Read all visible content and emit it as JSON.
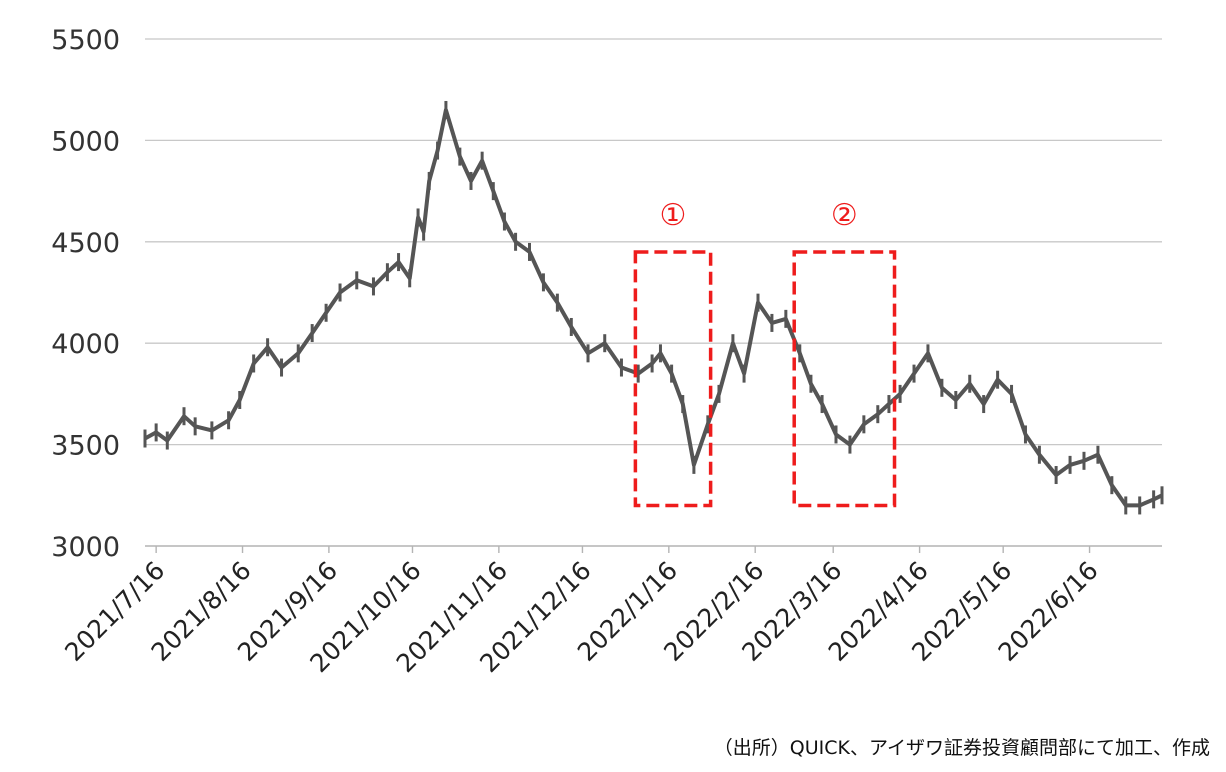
{
  "chart_data": {
    "type": "line",
    "title": "",
    "xlabel": "",
    "ylabel": "",
    "ylim": [
      3000,
      5500
    ],
    "xlim": [
      "2021-07-12",
      "2022-07-12"
    ],
    "y_ticks": [
      "3000",
      "3500",
      "4000",
      "4500",
      "5000",
      "5500"
    ],
    "x_ticks": [
      {
        "label": "2021/7/16",
        "date": "2021-07-16"
      },
      {
        "label": "2021/8/16",
        "date": "2021-08-16"
      },
      {
        "label": "2021/9/16",
        "date": "2021-09-16"
      },
      {
        "label": "2021/10/16",
        "date": "2021-10-16"
      },
      {
        "label": "2021/11/16",
        "date": "2021-11-16"
      },
      {
        "label": "2021/12/16",
        "date": "2021-12-16"
      },
      {
        "label": "2022/1/16",
        "date": "2022-01-16"
      },
      {
        "label": "2022/2/16",
        "date": "2022-02-16"
      },
      {
        "label": "2022/3/16",
        "date": "2022-03-16"
      },
      {
        "label": "2022/4/16",
        "date": "2022-04-16"
      },
      {
        "label": "2022/5/16",
        "date": "2022-05-16"
      },
      {
        "label": "2022/6/16",
        "date": "2022-06-16"
      }
    ],
    "grid": true,
    "line_color": "#555555",
    "series": [
      {
        "x": [
          "2021-07-12",
          "2021-07-16",
          "2021-07-20",
          "2021-07-26",
          "2021-07-30",
          "2021-08-05",
          "2021-08-11",
          "2021-08-15",
          "2021-08-20",
          "2021-08-25",
          "2021-08-30",
          "2021-09-05",
          "2021-09-10",
          "2021-09-15",
          "2021-09-20",
          "2021-09-26",
          "2021-10-02",
          "2021-10-07",
          "2021-10-11",
          "2021-10-15",
          "2021-10-18",
          "2021-10-20",
          "2021-10-22",
          "2021-10-25",
          "2021-10-28",
          "2021-11-02",
          "2021-11-06",
          "2021-11-10",
          "2021-11-14",
          "2021-11-18",
          "2021-11-22",
          "2021-11-27",
          "2021-12-02",
          "2021-12-07",
          "2021-12-12",
          "2021-12-18",
          "2021-12-24",
          "2021-12-30",
          "2022-01-05",
          "2022-01-10",
          "2022-01-13",
          "2022-01-17",
          "2022-01-21",
          "2022-01-25",
          "2022-01-30",
          "2022-02-03",
          "2022-02-08",
          "2022-02-12",
          "2022-02-17",
          "2022-02-22",
          "2022-02-27",
          "2022-03-04",
          "2022-03-08",
          "2022-03-12",
          "2022-03-17",
          "2022-03-22",
          "2022-03-27",
          "2022-04-01",
          "2022-04-05",
          "2022-04-09",
          "2022-04-14",
          "2022-04-19",
          "2022-04-24",
          "2022-04-29",
          "2022-05-04",
          "2022-05-09",
          "2022-05-14",
          "2022-05-19",
          "2022-05-24",
          "2022-05-29",
          "2022-06-04",
          "2022-06-09",
          "2022-06-14",
          "2022-06-19",
          "2022-06-24",
          "2022-06-29",
          "2022-07-04",
          "2022-07-09",
          "2022-07-12"
        ],
        "y": [
          3530,
          3560,
          3520,
          3640,
          3590,
          3570,
          3620,
          3720,
          3900,
          3980,
          3880,
          3950,
          4050,
          4150,
          4250,
          4310,
          4280,
          4350,
          4400,
          4320,
          4620,
          4550,
          4800,
          4950,
          5150,
          4920,
          4800,
          4900,
          4750,
          4600,
          4500,
          4450,
          4300,
          4200,
          4080,
          3950,
          4000,
          3880,
          3850,
          3900,
          3950,
          3850,
          3700,
          3400,
          3600,
          3750,
          4000,
          3850,
          4200,
          4100,
          4120,
          3950,
          3800,
          3700,
          3550,
          3500,
          3600,
          3650,
          3700,
          3750,
          3850,
          3950,
          3780,
          3720,
          3800,
          3700,
          3820,
          3750,
          3550,
          3450,
          3350,
          3400,
          3420,
          3450,
          3300,
          3200,
          3200,
          3230,
          3250
        ]
      }
    ],
    "annotations": [
      {
        "label": "①",
        "x_range": [
          "2022-01-04",
          "2022-01-31"
        ],
        "y_range": [
          3200,
          4450
        ],
        "style": "red dashed box"
      },
      {
        "label": "②",
        "x_range": [
          "2022-03-02",
          "2022-04-07"
        ],
        "y_range": [
          3200,
          4450
        ],
        "style": "red dashed box"
      }
    ]
  },
  "source_note": "（出所）QUICK、アイザワ証券投資顧問部にて加工、作成",
  "colors": {
    "grid": "#c8c8c8",
    "axis": "#b4b4b4",
    "annotation": "#ee1c1c"
  }
}
